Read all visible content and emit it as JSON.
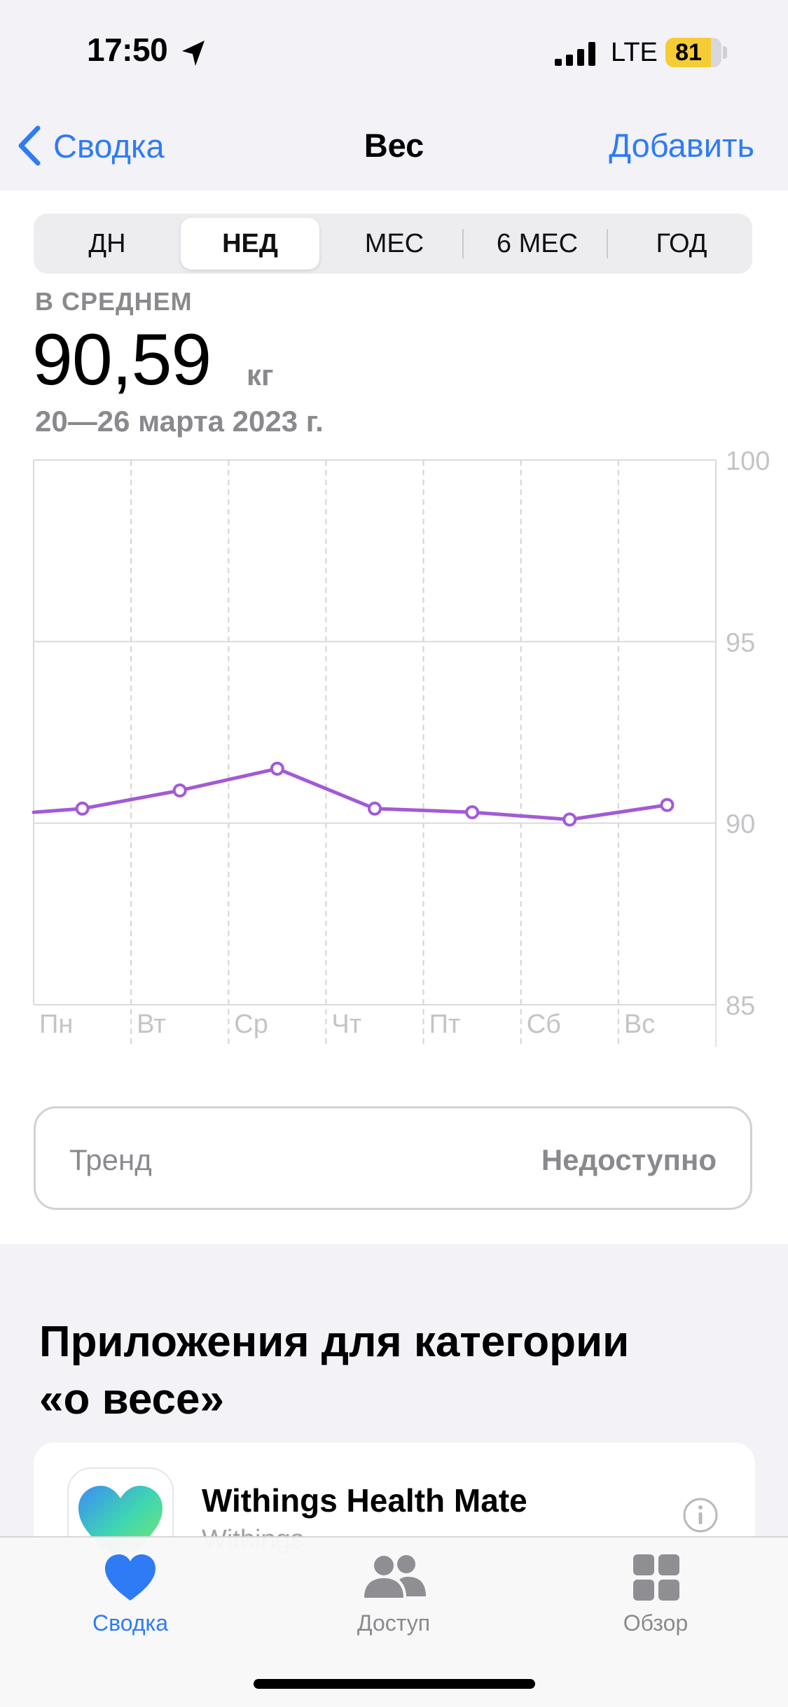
{
  "status_bar": {
    "time": "17:50",
    "network": "LTE",
    "battery": "81",
    "battery_level": 0.81,
    "icons": [
      "location-arrow-icon",
      "cellular-signal-icon",
      "battery-icon"
    ]
  },
  "nav": {
    "back_label": "Сводка",
    "title": "Вес",
    "add_label": "Добавить"
  },
  "segments": {
    "items": [
      "ДН",
      "НЕД",
      "МЕС",
      "6 МЕС",
      "ГОД"
    ],
    "selected": "НЕД"
  },
  "summary": {
    "label": "В СРЕДНЕМ",
    "value": "90,59",
    "unit": "кг",
    "date_range": "20—26 марта 2023 г."
  },
  "chart_data": {
    "type": "line",
    "categories": [
      "Пн",
      "Вт",
      "Ср",
      "Чт",
      "Пт",
      "Сб",
      "Вс"
    ],
    "series": [
      {
        "values": [
          90.4,
          90.9,
          91.5,
          90.4,
          90.3,
          90.1,
          90.5
        ]
      }
    ],
    "incoming_value": 90.3,
    "y_ticks": [
      "100",
      "95",
      "90",
      "85"
    ],
    "ylim": [
      85,
      100
    ],
    "grid": true,
    "color": "#a35ad6"
  },
  "trend": {
    "label": "Тренд",
    "value": "Недоступно"
  },
  "apps_section": {
    "title_line1": "Приложения для категории",
    "title_line2": "«о весе»",
    "apps": [
      {
        "name": "Withings Health Mate",
        "developer": "Withings",
        "icon": "withings-heart-icon"
      }
    ]
  },
  "tabbar": {
    "items": [
      {
        "label": "Сводка",
        "icon": "heart-icon",
        "active": true
      },
      {
        "label": "Доступ",
        "icon": "people-icon",
        "active": false
      },
      {
        "label": "Обзор",
        "icon": "grid-icon",
        "active": false
      }
    ]
  },
  "colors": {
    "accent": "#2f7bf5",
    "line": "#a35ad6",
    "battery": "#f5cc33",
    "secondary_text": "#8a8a8e"
  }
}
